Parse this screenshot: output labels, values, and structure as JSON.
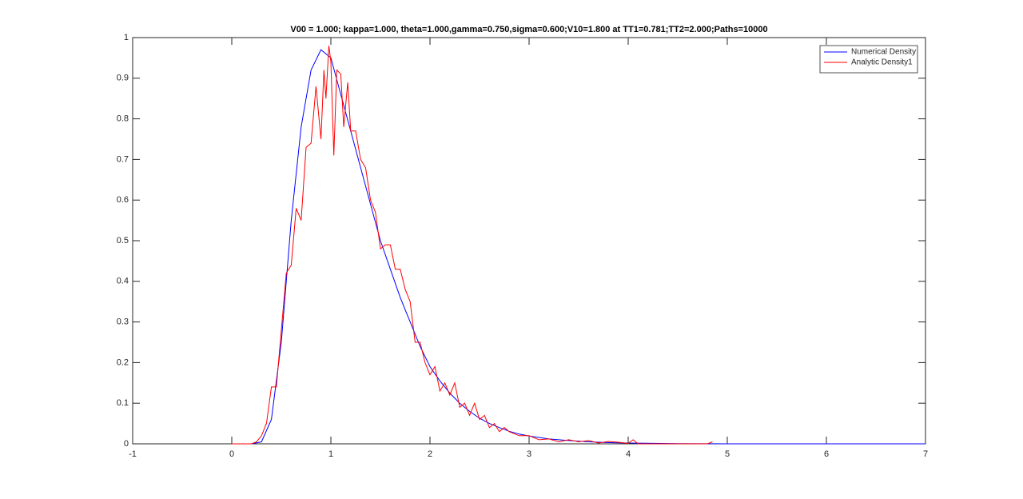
{
  "chart_data": {
    "type": "line",
    "title": "V00 = 1.000; kappa=1.000, theta=1.000,gamma=0.750,sigma=0.600;V10=1.800 at TT1=0.781;TT2=2.000;Paths=10000",
    "xlim": [
      -1,
      7
    ],
    "ylim": [
      0,
      1
    ],
    "xticks": [
      -1,
      0,
      1,
      2,
      3,
      4,
      5,
      6,
      7
    ],
    "yticks": [
      0,
      0.1,
      0.2,
      0.3,
      0.4,
      0.5,
      0.6,
      0.7,
      0.8,
      0.9,
      1
    ],
    "grid": false,
    "legend": "top-right",
    "series": [
      {
        "name": "Numerical Density",
        "color": "#0000ff",
        "x": [
          0,
          0.1,
          0.2,
          0.3,
          0.4,
          0.5,
          0.6,
          0.7,
          0.8,
          0.9,
          1.0,
          1.1,
          1.2,
          1.3,
          1.4,
          1.5,
          1.6,
          1.7,
          1.8,
          1.9,
          2.0,
          2.1,
          2.2,
          2.3,
          2.4,
          2.5,
          2.6,
          2.7,
          2.8,
          2.9,
          3.0,
          3.2,
          3.4,
          3.6,
          3.8,
          4.0,
          4.5,
          5,
          6,
          7
        ],
        "values": [
          0,
          0,
          0,
          0.005,
          0.06,
          0.25,
          0.55,
          0.78,
          0.92,
          0.97,
          0.95,
          0.86,
          0.77,
          0.68,
          0.59,
          0.5,
          0.43,
          0.36,
          0.3,
          0.24,
          0.19,
          0.155,
          0.125,
          0.1,
          0.08,
          0.063,
          0.05,
          0.04,
          0.031,
          0.024,
          0.019,
          0.012,
          0.008,
          0.005,
          0.003,
          0.002,
          0.0005,
          0,
          0,
          0
        ]
      },
      {
        "name": "Analytic Density1",
        "color": "#ff0000",
        "x": [
          0,
          0.1,
          0.2,
          0.25,
          0.3,
          0.35,
          0.4,
          0.45,
          0.5,
          0.55,
          0.6,
          0.65,
          0.7,
          0.75,
          0.8,
          0.85,
          0.9,
          0.93,
          0.95,
          0.98,
          1.0,
          1.03,
          1.06,
          1.1,
          1.13,
          1.17,
          1.2,
          1.25,
          1.3,
          1.35,
          1.4,
          1.45,
          1.5,
          1.55,
          1.6,
          1.65,
          1.7,
          1.75,
          1.8,
          1.85,
          1.9,
          1.95,
          2.0,
          2.05,
          2.1,
          2.15,
          2.2,
          2.25,
          2.3,
          2.35,
          2.4,
          2.45,
          2.5,
          2.55,
          2.6,
          2.65,
          2.7,
          2.75,
          2.8,
          2.85,
          2.9,
          3.0,
          3.1,
          3.2,
          3.3,
          3.4,
          3.5,
          3.6,
          3.7,
          3.8,
          3.9,
          4.0,
          4.05,
          4.1,
          4.5,
          4.8,
          4.85
        ],
        "values": [
          0,
          0,
          0,
          0.005,
          0.02,
          0.05,
          0.14,
          0.14,
          0.28,
          0.42,
          0.44,
          0.58,
          0.55,
          0.73,
          0.74,
          0.88,
          0.75,
          0.92,
          0.85,
          0.98,
          0.94,
          0.71,
          0.92,
          0.91,
          0.78,
          0.89,
          0.77,
          0.77,
          0.7,
          0.68,
          0.6,
          0.57,
          0.48,
          0.49,
          0.49,
          0.43,
          0.43,
          0.38,
          0.35,
          0.25,
          0.25,
          0.2,
          0.17,
          0.19,
          0.13,
          0.15,
          0.12,
          0.15,
          0.09,
          0.1,
          0.07,
          0.1,
          0.06,
          0.07,
          0.04,
          0.05,
          0.03,
          0.04,
          0.03,
          0.025,
          0.02,
          0.02,
          0.01,
          0.012,
          0.005,
          0.01,
          0.005,
          0.008,
          0.002,
          0.006,
          0.004,
          0.001,
          0.01,
          0,
          0,
          0,
          0.005
        ]
      }
    ]
  }
}
